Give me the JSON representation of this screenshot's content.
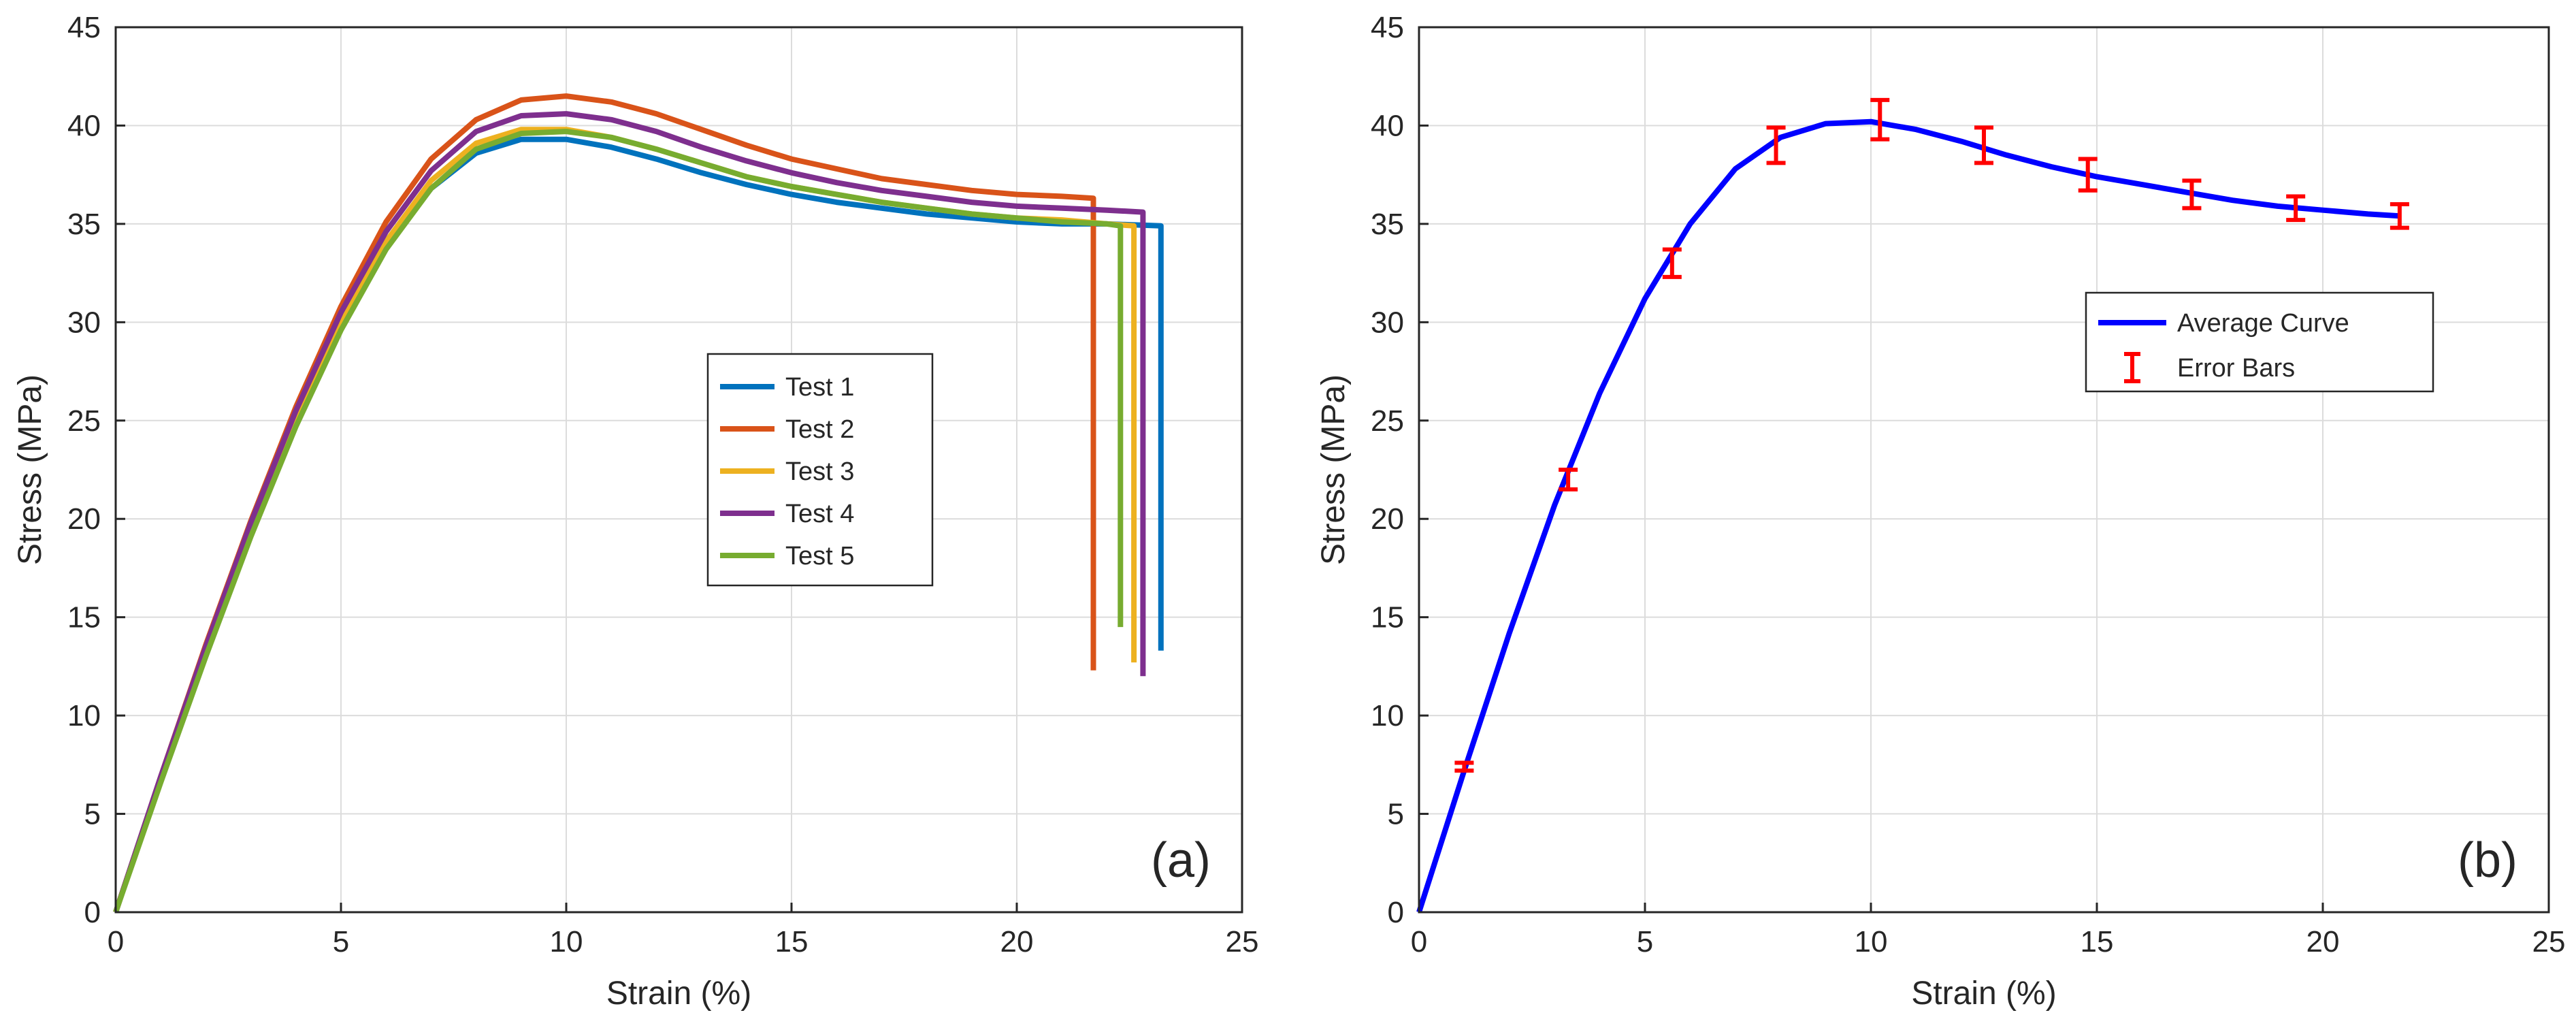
{
  "chart_data": [
    {
      "type": "line",
      "panel_label": "(a)",
      "xlabel": "Strain (%)",
      "ylabel": "Stress (MPa)",
      "xlim": [
        0,
        25
      ],
      "ylim": [
        0,
        45
      ],
      "xticks": [
        0,
        5,
        10,
        15,
        20,
        25
      ],
      "yticks": [
        0,
        5,
        10,
        15,
        20,
        25,
        30,
        35,
        40,
        45
      ],
      "grid": true,
      "legend_position": "center-right",
      "series": [
        {
          "name": "Test 1",
          "color": "#0072BD",
          "points": [
            [
              0,
              0
            ],
            [
              1,
              6.8
            ],
            [
              2,
              13.3
            ],
            [
              3,
              19.5
            ],
            [
              4,
              25.0
            ],
            [
              5,
              29.8
            ],
            [
              6,
              33.8
            ],
            [
              7,
              36.8
            ],
            [
              8,
              38.6
            ],
            [
              9,
              39.3
            ],
            [
              10,
              39.3
            ],
            [
              11,
              38.9
            ],
            [
              12,
              38.3
            ],
            [
              13,
              37.6
            ],
            [
              14,
              37.0
            ],
            [
              15,
              36.5
            ],
            [
              16,
              36.1
            ],
            [
              17,
              35.8
            ],
            [
              18,
              35.5
            ],
            [
              19,
              35.3
            ],
            [
              20,
              35.1
            ],
            [
              21,
              35.0
            ],
            [
              22,
              35.0
            ],
            [
              23.2,
              34.9
            ],
            [
              23.2,
              13.3
            ]
          ]
        },
        {
          "name": "Test 2",
          "color": "#D95319",
          "points": [
            [
              0,
              0
            ],
            [
              1,
              6.9
            ],
            [
              2,
              13.6
            ],
            [
              3,
              19.9
            ],
            [
              4,
              25.7
            ],
            [
              5,
              30.8
            ],
            [
              6,
              35.1
            ],
            [
              7,
              38.3
            ],
            [
              8,
              40.3
            ],
            [
              9,
              41.3
            ],
            [
              10,
              41.5
            ],
            [
              11,
              41.2
            ],
            [
              12,
              40.6
            ],
            [
              13,
              39.8
            ],
            [
              14,
              39.0
            ],
            [
              15,
              38.3
            ],
            [
              16,
              37.8
            ],
            [
              17,
              37.3
            ],
            [
              18,
              37.0
            ],
            [
              19,
              36.7
            ],
            [
              20,
              36.5
            ],
            [
              21,
              36.4
            ],
            [
              21.7,
              36.3
            ],
            [
              21.7,
              12.3
            ]
          ]
        },
        {
          "name": "Test 3",
          "color": "#EDB120",
          "points": [
            [
              0,
              0
            ],
            [
              1,
              6.8
            ],
            [
              2,
              13.3
            ],
            [
              3,
              19.5
            ],
            [
              4,
              25.1
            ],
            [
              5,
              30.0
            ],
            [
              6,
              34.1
            ],
            [
              7,
              37.2
            ],
            [
              8,
              39.1
            ],
            [
              9,
              39.8
            ],
            [
              10,
              39.8
            ],
            [
              11,
              39.4
            ],
            [
              12,
              38.8
            ],
            [
              13,
              38.1
            ],
            [
              14,
              37.4
            ],
            [
              15,
              36.9
            ],
            [
              16,
              36.5
            ],
            [
              17,
              36.1
            ],
            [
              18,
              35.8
            ],
            [
              19,
              35.5
            ],
            [
              20,
              35.3
            ],
            [
              21,
              35.2
            ],
            [
              22,
              35.0
            ],
            [
              22.6,
              34.9
            ],
            [
              22.6,
              12.7
            ]
          ]
        },
        {
          "name": "Test 4",
          "color": "#7E2F8E",
          "points": [
            [
              0,
              0
            ],
            [
              1,
              6.9
            ],
            [
              2,
              13.5
            ],
            [
              3,
              19.8
            ],
            [
              4,
              25.5
            ],
            [
              5,
              30.5
            ],
            [
              6,
              34.6
            ],
            [
              7,
              37.7
            ],
            [
              8,
              39.7
            ],
            [
              9,
              40.5
            ],
            [
              10,
              40.6
            ],
            [
              11,
              40.3
            ],
            [
              12,
              39.7
            ],
            [
              13,
              38.9
            ],
            [
              14,
              38.2
            ],
            [
              15,
              37.6
            ],
            [
              16,
              37.1
            ],
            [
              17,
              36.7
            ],
            [
              18,
              36.4
            ],
            [
              19,
              36.1
            ],
            [
              20,
              35.9
            ],
            [
              21,
              35.8
            ],
            [
              22,
              35.7
            ],
            [
              22.8,
              35.6
            ],
            [
              22.8,
              12.0
            ]
          ]
        },
        {
          "name": "Test 5",
          "color": "#77AC30",
          "points": [
            [
              0,
              0
            ],
            [
              1,
              6.6
            ],
            [
              2,
              13.0
            ],
            [
              3,
              19.1
            ],
            [
              4,
              24.7
            ],
            [
              5,
              29.6
            ],
            [
              6,
              33.7
            ],
            [
              7,
              36.8
            ],
            [
              8,
              38.8
            ],
            [
              9,
              39.6
            ],
            [
              10,
              39.7
            ],
            [
              11,
              39.4
            ],
            [
              12,
              38.8
            ],
            [
              13,
              38.1
            ],
            [
              14,
              37.4
            ],
            [
              15,
              36.9
            ],
            [
              16,
              36.5
            ],
            [
              17,
              36.1
            ],
            [
              18,
              35.8
            ],
            [
              19,
              35.5
            ],
            [
              20,
              35.3
            ],
            [
              21,
              35.1
            ],
            [
              22,
              35.0
            ],
            [
              22.3,
              34.9
            ],
            [
              22.3,
              14.5
            ]
          ]
        }
      ]
    },
    {
      "type": "line",
      "panel_label": "(b)",
      "xlabel": "Strain (%)",
      "ylabel": "Stress (MPa)",
      "xlim": [
        0,
        25
      ],
      "ylim": [
        0,
        45
      ],
      "xticks": [
        0,
        5,
        10,
        15,
        20,
        25
      ],
      "yticks": [
        0,
        5,
        10,
        15,
        20,
        25,
        30,
        35,
        40,
        45
      ],
      "grid": true,
      "legend_position": "center-right",
      "series": [
        {
          "name": "Average Curve",
          "color": "#0000FF",
          "points": [
            [
              0,
              0
            ],
            [
              1,
              7.2
            ],
            [
              2,
              14.2
            ],
            [
              3,
              20.7
            ],
            [
              4,
              26.4
            ],
            [
              5,
              31.2
            ],
            [
              6,
              35.0
            ],
            [
              7,
              37.8
            ],
            [
              8,
              39.4
            ],
            [
              9,
              40.1
            ],
            [
              10,
              40.2
            ],
            [
              11,
              39.8
            ],
            [
              12,
              39.2
            ],
            [
              13,
              38.5
            ],
            [
              14,
              37.9
            ],
            [
              15,
              37.4
            ],
            [
              16,
              37.0
            ],
            [
              17,
              36.6
            ],
            [
              18,
              36.2
            ],
            [
              19,
              35.9
            ],
            [
              20,
              35.7
            ],
            [
              21,
              35.5
            ],
            [
              21.7,
              35.4
            ]
          ]
        },
        {
          "name": "Error Bars",
          "color": "#FF0000",
          "type": "errorbar",
          "x": [
            1.0,
            3.3,
            5.6,
            7.9,
            10.2,
            12.5,
            14.8,
            17.1,
            19.4,
            21.7
          ],
          "y": [
            7.4,
            22.0,
            33.0,
            39.0,
            40.3,
            39.0,
            37.5,
            36.5,
            35.8,
            35.4
          ],
          "err": [
            0.2,
            0.5,
            0.7,
            0.9,
            1.0,
            0.9,
            0.8,
            0.7,
            0.6,
            0.6
          ]
        }
      ]
    }
  ]
}
